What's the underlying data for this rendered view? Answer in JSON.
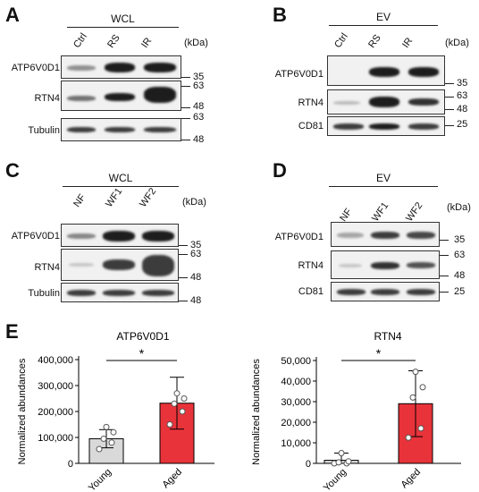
{
  "panels": {
    "A": {
      "letter": "A",
      "group": "WCL",
      "lanes": [
        "Ctrl",
        "RS",
        "IR"
      ],
      "kda": "(kDa)",
      "rows": [
        "ATP6V0D1",
        "RTN4",
        "Tubulin"
      ],
      "markers": [
        "35",
        "63",
        "48",
        "63",
        "48"
      ]
    },
    "B": {
      "letter": "B",
      "group": "EV",
      "lanes": [
        "Ctrl",
        "RS",
        "IR"
      ],
      "kda": "(kDa)",
      "rows": [
        "ATP6V0D1",
        "RTN4",
        "CD81"
      ],
      "markers": [
        "35",
        "63",
        "48",
        "25"
      ]
    },
    "C": {
      "letter": "C",
      "group": "WCL",
      "lanes": [
        "NF",
        "WF1",
        "WF2"
      ],
      "kda": "(kDa)",
      "rows": [
        "ATP6V0D1",
        "RTN4",
        "Tubulin"
      ],
      "markers": [
        "35",
        "63",
        "48",
        "48"
      ]
    },
    "D": {
      "letter": "D",
      "group": "EV",
      "lanes": [
        "NF",
        "WF1",
        "WF2"
      ],
      "kda": "(kDa)",
      "rows": [
        "ATP6V0D1",
        "RTN4",
        "CD81"
      ],
      "markers": [
        "35",
        "63",
        "48",
        "25"
      ]
    },
    "E": {
      "letter": "E"
    }
  },
  "chart_data": [
    {
      "type": "bar",
      "title": "ATP6V0D1",
      "ylabel": "Normalized abundances",
      "categories": [
        "Young",
        "Aged"
      ],
      "values": [
        95000,
        232000
      ],
      "errors": [
        35000,
        100000
      ],
      "points": [
        [
          55000,
          80000,
          95000,
          120000,
          140000
        ],
        [
          150000,
          200000,
          230000,
          250000,
          270000
        ]
      ],
      "colors": [
        "#d9d9d9",
        "#e8333a"
      ],
      "ylim": [
        0,
        400000
      ],
      "yticks": [
        "0",
        "100,000",
        "200,000",
        "300,000",
        "400,000"
      ],
      "significance": "*"
    },
    {
      "type": "bar",
      "title": "RTN4",
      "ylabel": "Normalized abundances",
      "categories": [
        "Young",
        "Aged"
      ],
      "values": [
        1500,
        29000
      ],
      "errors": [
        3500,
        16000
      ],
      "points": [
        [
          0,
          0,
          500,
          1000,
          5000
        ],
        [
          12500,
          17000,
          32000,
          37000,
          44500
        ]
      ],
      "colors": [
        "#d9d9d9",
        "#e8333a"
      ],
      "ylim": [
        0,
        50000
      ],
      "yticks": [
        "0",
        "10,000",
        "20,000",
        "30,000",
        "40,000",
        "50,000"
      ],
      "significance": "*"
    }
  ]
}
